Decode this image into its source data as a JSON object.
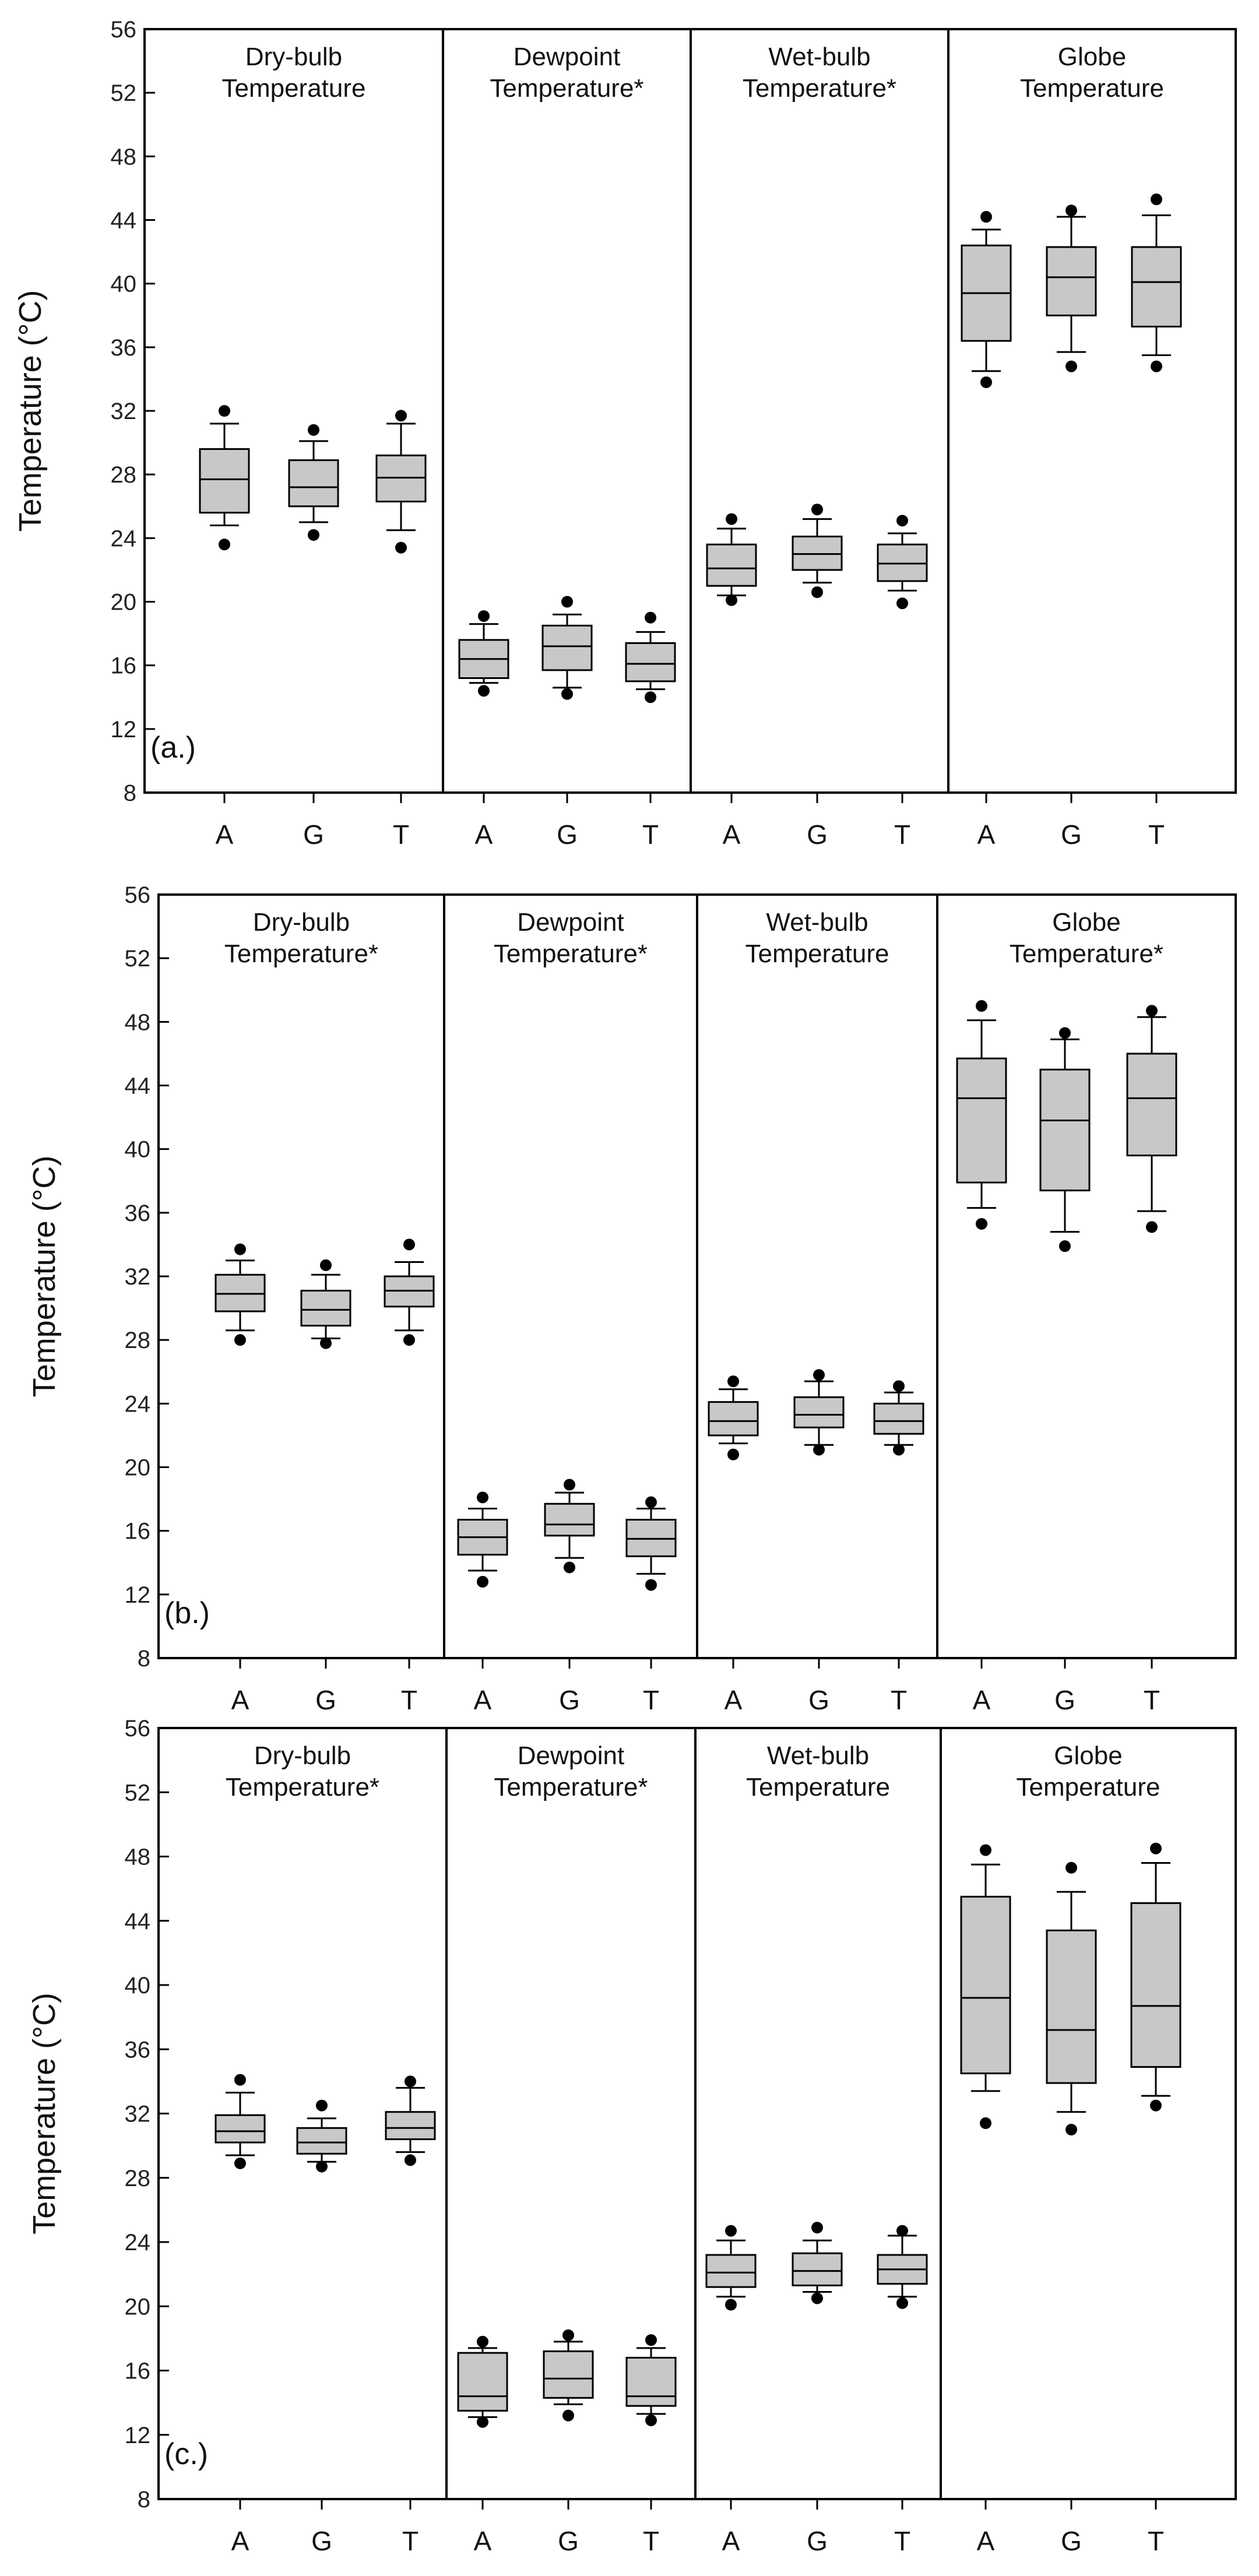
{
  "chart_data": [
    {
      "type": "box",
      "panel_label": "(a.)",
      "ylabel": "Temperature (°C)",
      "ylim": [
        8,
        56
      ],
      "yticks": [
        8,
        12,
        16,
        20,
        24,
        28,
        32,
        36,
        40,
        44,
        48,
        52,
        56
      ],
      "categories": [
        "A",
        "G",
        "T"
      ],
      "groups": [
        {
          "title_line1": "Dry-bulb",
          "title_line2": "Temperature",
          "boxes": [
            {
              "whisker_low": 24.8,
              "q1": 25.6,
              "median": 27.7,
              "q3": 29.6,
              "whisker_high": 31.2,
              "outlier_low": 23.6,
              "outlier_high": 32.0
            },
            {
              "whisker_low": 25.0,
              "q1": 26.0,
              "median": 27.2,
              "q3": 28.9,
              "whisker_high": 30.1,
              "outlier_low": 24.2,
              "outlier_high": 30.8
            },
            {
              "whisker_low": 24.5,
              "q1": 26.3,
              "median": 27.8,
              "q3": 29.2,
              "whisker_high": 31.2,
              "outlier_low": 23.4,
              "outlier_high": 31.7
            }
          ]
        },
        {
          "title_line1": "Dewpoint",
          "title_line2": "Temperature*",
          "boxes": [
            {
              "whisker_low": 14.9,
              "q1": 15.2,
              "median": 16.4,
              "q3": 17.6,
              "whisker_high": 18.6,
              "outlier_low": 14.4,
              "outlier_high": 19.1
            },
            {
              "whisker_low": 14.6,
              "q1": 15.7,
              "median": 17.2,
              "q3": 18.5,
              "whisker_high": 19.2,
              "outlier_low": 14.2,
              "outlier_high": 20.0
            },
            {
              "whisker_low": 14.5,
              "q1": 15.0,
              "median": 16.1,
              "q3": 17.4,
              "whisker_high": 18.1,
              "outlier_low": 14.0,
              "outlier_high": 19.0
            }
          ]
        },
        {
          "title_line1": "Wet-bulb",
          "title_line2": "Temperature*",
          "boxes": [
            {
              "whisker_low": 20.4,
              "q1": 21.0,
              "median": 22.1,
              "q3": 23.6,
              "whisker_high": 24.6,
              "outlier_low": 20.1,
              "outlier_high": 25.2
            },
            {
              "whisker_low": 21.2,
              "q1": 22.0,
              "median": 23.0,
              "q3": 24.1,
              "whisker_high": 25.2,
              "outlier_low": 20.6,
              "outlier_high": 25.8
            },
            {
              "whisker_low": 20.7,
              "q1": 21.3,
              "median": 22.4,
              "q3": 23.6,
              "whisker_high": 24.3,
              "outlier_low": 19.9,
              "outlier_high": 25.1
            }
          ]
        },
        {
          "title_line1": "Globe",
          "title_line2": "Temperature",
          "boxes": [
            {
              "whisker_low": 34.5,
              "q1": 36.4,
              "median": 39.4,
              "q3": 42.4,
              "whisker_high": 43.4,
              "outlier_low": 33.8,
              "outlier_high": 44.2
            },
            {
              "whisker_low": 35.7,
              "q1": 38.0,
              "median": 40.4,
              "q3": 42.3,
              "whisker_high": 44.2,
              "outlier_low": 34.8,
              "outlier_high": 44.6
            },
            {
              "whisker_low": 35.5,
              "q1": 37.3,
              "median": 40.1,
              "q3": 42.3,
              "whisker_high": 44.3,
              "outlier_low": 34.8,
              "outlier_high": 45.3
            }
          ]
        }
      ]
    },
    {
      "type": "box",
      "panel_label": "(b.)",
      "ylabel": "Temperature (°C)",
      "ylim": [
        8,
        56
      ],
      "yticks": [
        8,
        12,
        16,
        20,
        24,
        28,
        32,
        36,
        40,
        44,
        48,
        52,
        56
      ],
      "categories": [
        "A",
        "G",
        "T"
      ],
      "groups": [
        {
          "title_line1": "Dry-bulb",
          "title_line2": "Temperature*",
          "boxes": [
            {
              "whisker_low": 28.6,
              "q1": 29.8,
              "median": 30.9,
              "q3": 32.1,
              "whisker_high": 33.0,
              "outlier_low": 28.0,
              "outlier_high": 33.7
            },
            {
              "whisker_low": 28.1,
              "q1": 28.9,
              "median": 29.9,
              "q3": 31.1,
              "whisker_high": 32.1,
              "outlier_low": 27.8,
              "outlier_high": 32.7
            },
            {
              "whisker_low": 28.6,
              "q1": 30.1,
              "median": 31.1,
              "q3": 32.0,
              "whisker_high": 32.9,
              "outlier_low": 28.0,
              "outlier_high": 34.0
            }
          ]
        },
        {
          "title_line1": "Dewpoint",
          "title_line2": "Temperature*",
          "boxes": [
            {
              "whisker_low": 13.5,
              "q1": 14.5,
              "median": 15.6,
              "q3": 16.7,
              "whisker_high": 17.4,
              "outlier_low": 12.8,
              "outlier_high": 18.1
            },
            {
              "whisker_low": 14.3,
              "q1": 15.7,
              "median": 16.4,
              "q3": 17.7,
              "whisker_high": 18.4,
              "outlier_low": 13.7,
              "outlier_high": 18.9
            },
            {
              "whisker_low": 13.3,
              "q1": 14.4,
              "median": 15.5,
              "q3": 16.7,
              "whisker_high": 17.4,
              "outlier_low": 12.6,
              "outlier_high": 17.8
            }
          ]
        },
        {
          "title_line1": "Wet-bulb",
          "title_line2": "Temperature",
          "boxes": [
            {
              "whisker_low": 21.5,
              "q1": 22.0,
              "median": 22.9,
              "q3": 24.1,
              "whisker_high": 24.9,
              "outlier_low": 20.8,
              "outlier_high": 25.4
            },
            {
              "whisker_low": 21.4,
              "q1": 22.5,
              "median": 23.3,
              "q3": 24.4,
              "whisker_high": 25.4,
              "outlier_low": 21.1,
              "outlier_high": 25.8
            },
            {
              "whisker_low": 21.4,
              "q1": 22.1,
              "median": 22.9,
              "q3": 24.0,
              "whisker_high": 24.7,
              "outlier_low": 21.1,
              "outlier_high": 25.1
            }
          ]
        },
        {
          "title_line1": "Globe",
          "title_line2": "Temperature*",
          "boxes": [
            {
              "whisker_low": 36.3,
              "q1": 37.9,
              "median": 43.2,
              "q3": 45.7,
              "whisker_high": 48.1,
              "outlier_low": 35.3,
              "outlier_high": 49.0
            },
            {
              "whisker_low": 34.8,
              "q1": 37.4,
              "median": 41.8,
              "q3": 45.0,
              "whisker_high": 46.9,
              "outlier_low": 33.9,
              "outlier_high": 47.3
            },
            {
              "whisker_low": 36.1,
              "q1": 39.6,
              "median": 43.2,
              "q3": 46.0,
              "whisker_high": 48.3,
              "outlier_low": 35.1,
              "outlier_high": 48.7
            }
          ]
        }
      ]
    },
    {
      "type": "box",
      "panel_label": "(c.)",
      "ylabel": "Temperature (°C)",
      "ylim": [
        8,
        56
      ],
      "yticks": [
        8,
        12,
        16,
        20,
        24,
        28,
        32,
        36,
        40,
        44,
        48,
        52,
        56
      ],
      "categories": [
        "A",
        "G",
        "T"
      ],
      "groups": [
        {
          "title_line1": "Dry-bulb",
          "title_line2": "Temperature*",
          "boxes": [
            {
              "whisker_low": 29.4,
              "q1": 30.2,
              "median": 30.9,
              "q3": 31.9,
              "whisker_high": 33.3,
              "outlier_low": 28.9,
              "outlier_high": 34.1
            },
            {
              "whisker_low": 29.0,
              "q1": 29.5,
              "median": 30.2,
              "q3": 31.1,
              "whisker_high": 31.7,
              "outlier_low": 28.7,
              "outlier_high": 32.5
            },
            {
              "whisker_low": 29.6,
              "q1": 30.4,
              "median": 31.1,
              "q3": 32.1,
              "whisker_high": 33.6,
              "outlier_low": 29.1,
              "outlier_high": 34.0
            }
          ]
        },
        {
          "title_line1": "Dewpoint",
          "title_line2": "Temperature*",
          "boxes": [
            {
              "whisker_low": 13.1,
              "q1": 13.5,
              "median": 14.4,
              "q3": 17.1,
              "whisker_high": 17.4,
              "outlier_low": 12.8,
              "outlier_high": 17.8
            },
            {
              "whisker_low": 13.9,
              "q1": 14.3,
              "median": 15.5,
              "q3": 17.2,
              "whisker_high": 17.8,
              "outlier_low": 13.2,
              "outlier_high": 18.2
            },
            {
              "whisker_low": 13.3,
              "q1": 13.8,
              "median": 14.4,
              "q3": 16.8,
              "whisker_high": 17.4,
              "outlier_low": 12.9,
              "outlier_high": 17.9
            }
          ]
        },
        {
          "title_line1": "Wet-bulb",
          "title_line2": "Temperature",
          "boxes": [
            {
              "whisker_low": 20.6,
              "q1": 21.2,
              "median": 22.1,
              "q3": 23.2,
              "whisker_high": 24.1,
              "outlier_low": 20.1,
              "outlier_high": 24.7
            },
            {
              "whisker_low": 20.9,
              "q1": 21.3,
              "median": 22.2,
              "q3": 23.3,
              "whisker_high": 24.1,
              "outlier_low": 20.5,
              "outlier_high": 24.9
            },
            {
              "whisker_low": 20.6,
              "q1": 21.4,
              "median": 22.3,
              "q3": 23.2,
              "whisker_high": 24.4,
              "outlier_low": 20.2,
              "outlier_high": 24.7
            }
          ]
        },
        {
          "title_line1": "Globe",
          "title_line2": "Temperature",
          "boxes": [
            {
              "whisker_low": 33.4,
              "q1": 34.5,
              "median": 39.2,
              "q3": 45.5,
              "whisker_high": 47.5,
              "outlier_low": 31.4,
              "outlier_high": 48.4
            },
            {
              "whisker_low": 32.1,
              "q1": 33.9,
              "median": 37.2,
              "q3": 43.4,
              "whisker_high": 45.8,
              "outlier_low": 31.0,
              "outlier_high": 47.3
            },
            {
              "whisker_low": 33.1,
              "q1": 34.9,
              "median": 38.7,
              "q3": 45.1,
              "whisker_high": 47.6,
              "outlier_low": 32.5,
              "outlier_high": 48.5
            }
          ]
        }
      ]
    }
  ]
}
